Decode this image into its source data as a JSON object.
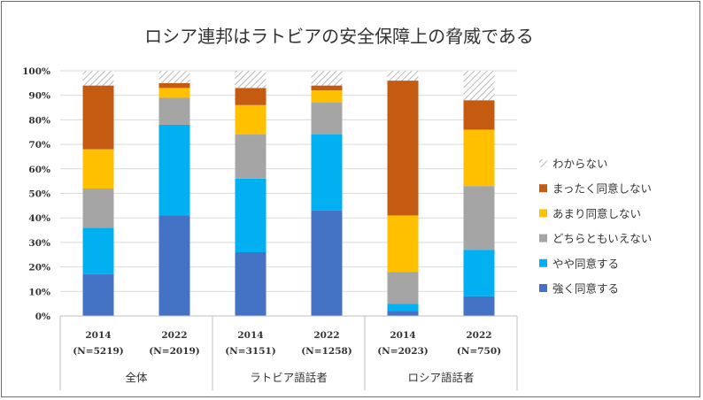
{
  "chart_data": {
    "type": "bar",
    "stacked": true,
    "title": "ロシア連邦はラトビアの安全保障上の脅威である",
    "xlabel": "",
    "ylabel": "",
    "ylim": [
      0,
      100
    ],
    "yticks": [
      "0%",
      "10%",
      "20%",
      "30%",
      "40%",
      "50%",
      "60%",
      "70%",
      "80%",
      "90%",
      "100%"
    ],
    "grid": true,
    "legend_position": "right",
    "groups": [
      {
        "label": "全体",
        "bars": [
          {
            "year": "2014",
            "n": "(N=5219)"
          },
          {
            "year": "2022",
            "n": "(N=2019)"
          }
        ]
      },
      {
        "label": "ラトビア語話者",
        "bars": [
          {
            "year": "2014",
            "n": "(N=3151)"
          },
          {
            "year": "2022",
            "n": "(N=1258)"
          }
        ]
      },
      {
        "label": "ロシア語話者",
        "bars": [
          {
            "year": "2014",
            "n": "(N=2023)"
          },
          {
            "year": "2022",
            "n": "(N=750)"
          }
        ]
      }
    ],
    "series": [
      {
        "name": "強く同意する",
        "color": "#4472c4",
        "values": [
          17,
          41,
          26,
          43,
          2,
          8
        ]
      },
      {
        "name": "やや同意する",
        "color": "#00b0f0",
        "values": [
          19,
          37,
          30,
          31,
          3,
          19
        ]
      },
      {
        "name": "どちらともいえない",
        "color": "#a5a5a5",
        "values": [
          16,
          11,
          18,
          13,
          13,
          26
        ]
      },
      {
        "name": "あまり同意しない",
        "color": "#ffc000",
        "values": [
          16,
          4,
          12,
          5,
          23,
          23
        ]
      },
      {
        "name": "まったく同意しない",
        "color": "#c55a11",
        "values": [
          26,
          2,
          7,
          2,
          55,
          12
        ]
      },
      {
        "name": "わからない",
        "color": "#d9d9d9",
        "pattern": "hatch",
        "values": [
          6,
          5,
          7,
          6,
          4,
          12
        ]
      }
    ]
  }
}
